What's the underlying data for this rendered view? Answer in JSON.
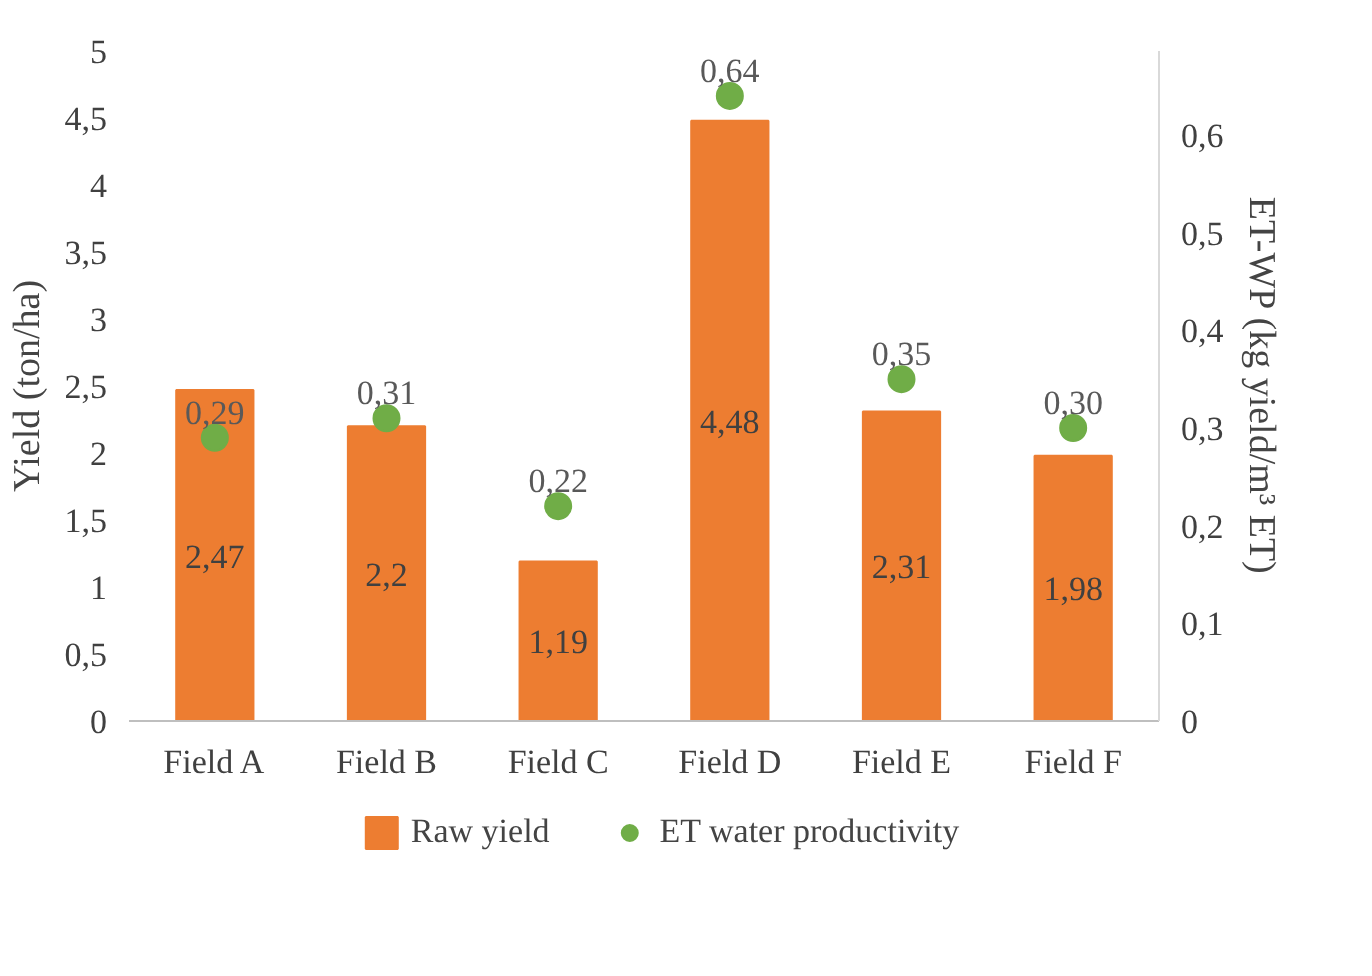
{
  "chart_data": {
    "type": "bar",
    "categories": [
      "Field A",
      "Field B",
      "Field C",
      "Field D",
      "Field E",
      "Field F"
    ],
    "ylabel": "Yield (ton/ha)",
    "y2label": "ET-WP (kg yield/m³ ET)",
    "ylim": [
      0,
      5
    ],
    "yticks": [
      0,
      {
        "value": 0.5,
        "label": "0,5"
      },
      1,
      {
        "value": 1.5,
        "label": "1,5"
      },
      2,
      {
        "value": 2.5,
        "label": "2,5"
      },
      3,
      {
        "value": 3.5,
        "label": "3,5"
      },
      4,
      {
        "value": 4.5,
        "label": "4,5"
      },
      5
    ],
    "y2lim": [
      0,
      0.686
    ],
    "y2ticks": [
      0,
      {
        "value": 0.1,
        "label": "0,1"
      },
      {
        "value": 0.2,
        "label": "0,2"
      },
      {
        "value": 0.3,
        "label": "0,3"
      },
      {
        "value": 0.4,
        "label": "0,4"
      },
      {
        "value": 0.5,
        "label": "0,5"
      },
      {
        "value": 0.6,
        "label": "0,6"
      }
    ],
    "grid": false,
    "legend": "bottom",
    "series": [
      {
        "name": "Raw yield",
        "color": "#ed7d31",
        "values": [
          2.47,
          2.2,
          1.19,
          4.48,
          2.31,
          1.98
        ],
        "value_labels": [
          "2,47",
          "2,2",
          "1,19",
          "4,48",
          "2,31",
          "1,98"
        ]
      },
      {
        "name": "ET water productivity",
        "type": "scatter",
        "axis": "y2",
        "marker": "circle",
        "color": "#70ad47",
        "values": [
          0.29,
          0.31,
          0.22,
          0.64,
          0.35,
          0.3
        ],
        "value_labels": [
          "0,29",
          "0,31",
          "0,22",
          "0,64",
          "0,35",
          "0,30"
        ]
      }
    ]
  }
}
